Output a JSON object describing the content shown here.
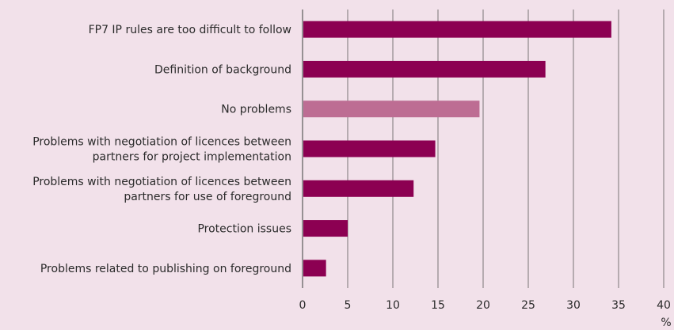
{
  "chart_data": {
    "type": "bar",
    "orientation": "horizontal",
    "categories": [
      [
        "FP7 IP rules are too difficult to follow"
      ],
      [
        "Definition of background"
      ],
      [
        "No problems"
      ],
      [
        "Problems with negotiation of licences between",
        "partners for project implementation"
      ],
      [
        "Problems with negotiation of licences between",
        "partners for use of foreground"
      ],
      [
        "Protection issues"
      ],
      [
        "Problems related to publishing on foreground"
      ]
    ],
    "values": [
      34.2,
      26.9,
      19.6,
      14.7,
      12.3,
      5.0,
      2.6
    ],
    "bar_colors": [
      "#8c0052",
      "#8c0052",
      "#bd6d93",
      "#8c0052",
      "#8c0052",
      "#8c0052",
      "#8c0052"
    ],
    "xlim": [
      0,
      40
    ],
    "xticks": [
      0,
      5,
      10,
      15,
      20,
      25,
      30,
      35,
      40
    ],
    "xlabel": "%",
    "grid": "vertical",
    "colors": {
      "background": "#f2e1ea",
      "grid": "#5a5a5a",
      "primary": "#8c0052",
      "highlight": "#bd6d93"
    }
  }
}
